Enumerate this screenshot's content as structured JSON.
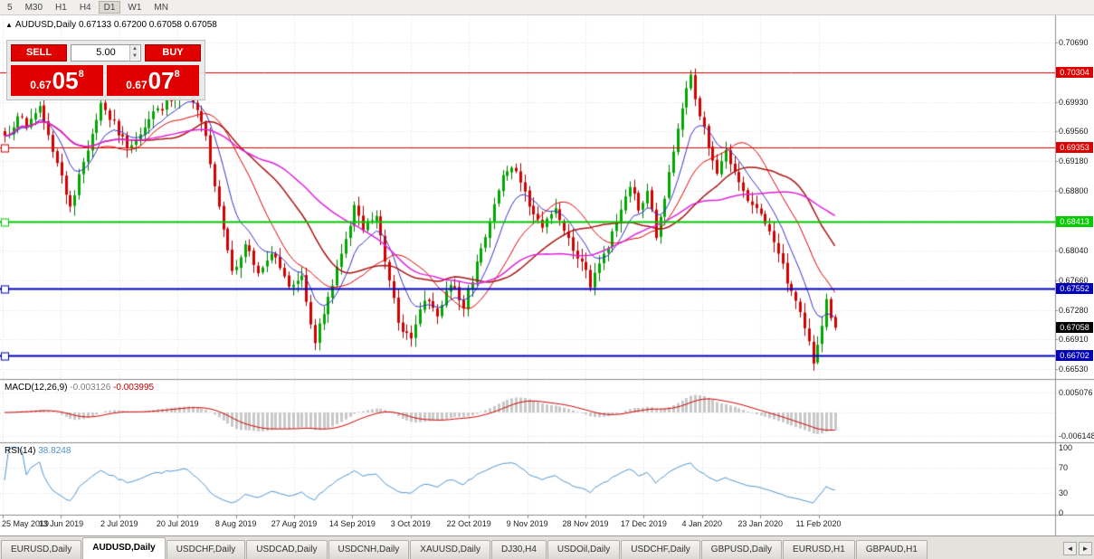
{
  "toolbar": {
    "timeframes": [
      "5",
      "M30",
      "H1",
      "H4",
      "D1",
      "W1",
      "MN"
    ],
    "active": "D1"
  },
  "header": {
    "collapse_icon": "▲",
    "symbol_period": "AUDUSD,Daily",
    "quotes": "0.67133 0.67200 0.67058 0.67058"
  },
  "trade_panel": {
    "sell_label": "SELL",
    "buy_label": "BUY",
    "volume": "5.00",
    "sell_price": {
      "small": "0.67",
      "big": "05",
      "sup": "8"
    },
    "buy_price": {
      "small": "0.67",
      "big": "07",
      "sup": "8"
    },
    "accent_color": "#e00000"
  },
  "macd_panel": {
    "label": "MACD(12,26,9)",
    "value_main": "-0.003126",
    "value_signal": "-0.003995"
  },
  "rsi_panel": {
    "label": "RSI(14)",
    "value": "38.8248"
  },
  "tabs": {
    "items": [
      {
        "label": "EURUSD,Daily",
        "active": false
      },
      {
        "label": "AUDUSD,Daily",
        "active": true
      },
      {
        "label": "USDCHF,Daily",
        "active": false
      },
      {
        "label": "USDCAD,Daily",
        "active": false
      },
      {
        "label": "USDCNH,Daily",
        "active": false
      },
      {
        "label": "XAUUSD,Daily",
        "active": false
      },
      {
        "label": "DJ30,H4",
        "active": false
      },
      {
        "label": "USDOil,Daily",
        "active": false
      },
      {
        "label": "USDCHF,Daily",
        "active": false
      },
      {
        "label": "GBPUSD,Daily",
        "active": false
      },
      {
        "label": "EURUSD,H1",
        "active": false
      },
      {
        "label": "GBPAUD,H1",
        "active": false
      }
    ],
    "scroll_left": "◄",
    "scroll_right": "►"
  },
  "chart_data": {
    "type": "candlestick",
    "symbol": "AUDUSD",
    "period": "Daily",
    "visible_ohlc": {
      "open": "0.67133",
      "high": "0.67200",
      "low": "0.67058",
      "close": "0.67058"
    },
    "x_dates": [
      "25 May 2019",
      "13 Jun 2019",
      "2 Jul 2019",
      "20 Jul 2019",
      "8 Aug 2019",
      "27 Aug 2019",
      "14 Sep 2019",
      "3 Oct 2019",
      "22 Oct 2019",
      "9 Nov 2019",
      "28 Nov 2019",
      "17 Dec 2019",
      "4 Jan 2020",
      "23 Jan 2020",
      "11 Feb 2020"
    ],
    "main_ylim": [
      0.6642,
      0.7102
    ],
    "price_ticks": [
      "0.70690",
      "0.69930",
      "0.69560",
      "0.69180",
      "0.68800",
      "0.68040",
      "0.67660",
      "0.67280",
      "0.66910",
      "0.66530"
    ],
    "price_tick_values": [
      0.7069,
      0.6993,
      0.6956,
      0.6918,
      0.688,
      0.6804,
      0.6766,
      0.6728,
      0.6691,
      0.6653
    ],
    "grid_levels": [
      0.7069,
      0.7031,
      0.6993,
      0.6956,
      0.6918,
      0.688,
      0.6842,
      0.6804,
      0.6766,
      0.6728,
      0.6691,
      0.6653
    ],
    "hlines": [
      {
        "price": 0.70304,
        "label": "0.70304",
        "color": "#dd0000",
        "width": 1
      },
      {
        "price": 0.69353,
        "label": "0.69353",
        "color": "#dd0000",
        "width": 1
      },
      {
        "price": 0.68413,
        "label": "0.68413",
        "color": "#00cc00",
        "width": 2
      },
      {
        "price": 0.67552,
        "label": "0.67552",
        "color": "#0000bb",
        "width": 2
      },
      {
        "price": 0.66702,
        "label": "0.66702",
        "color": "#0000bb",
        "width": 2
      }
    ],
    "current_price": {
      "value": 0.67058,
      "label": "0.67058",
      "color": "#000000"
    },
    "num_candles": 191,
    "candle_colors": {
      "up": "#00a800",
      "down": "#d40000",
      "up_wick": "#007800",
      "down_wick": "#a00000"
    },
    "price_anchors": [
      [
        0,
        0.695
      ],
      [
        3,
        0.6975
      ],
      [
        5,
        0.696
      ],
      [
        8,
        0.6988
      ],
      [
        15,
        0.686
      ],
      [
        22,
        0.6992
      ],
      [
        28,
        0.6935
      ],
      [
        35,
        0.6985
      ],
      [
        42,
        0.7005
      ],
      [
        46,
        0.695
      ],
      [
        49,
        0.686
      ],
      [
        52,
        0.6778
      ],
      [
        55,
        0.6812
      ],
      [
        58,
        0.6775
      ],
      [
        61,
        0.68
      ],
      [
        65,
        0.6758
      ],
      [
        68,
        0.6772
      ],
      [
        71,
        0.6686
      ],
      [
        74,
        0.6745
      ],
      [
        77,
        0.68
      ],
      [
        80,
        0.6862
      ],
      [
        82,
        0.683
      ],
      [
        85,
        0.6848
      ],
      [
        87,
        0.679
      ],
      [
        90,
        0.6712
      ],
      [
        93,
        0.6692
      ],
      [
        96,
        0.674
      ],
      [
        99,
        0.672
      ],
      [
        102,
        0.676
      ],
      [
        105,
        0.673
      ],
      [
        108,
        0.679
      ],
      [
        111,
        0.684
      ],
      [
        114,
        0.69
      ],
      [
        117,
        0.6905
      ],
      [
        120,
        0.686
      ],
      [
        123,
        0.6833
      ],
      [
        126,
        0.6858
      ],
      [
        129,
        0.682
      ],
      [
        132,
        0.679
      ],
      [
        134,
        0.6757
      ],
      [
        137,
        0.68
      ],
      [
        140,
        0.684
      ],
      [
        143,
        0.6885
      ],
      [
        145,
        0.6855
      ],
      [
        147,
        0.688
      ],
      [
        149,
        0.682
      ],
      [
        151,
        0.687
      ],
      [
        153,
        0.693
      ],
      [
        155,
        0.6985
      ],
      [
        157,
        0.7028
      ],
      [
        159,
        0.6975
      ],
      [
        161,
        0.6935
      ],
      [
        163,
        0.6902
      ],
      [
        165,
        0.6932
      ],
      [
        167,
        0.6905
      ],
      [
        169,
        0.688
      ],
      [
        171,
        0.6862
      ],
      [
        174,
        0.6838
      ],
      [
        177,
        0.68
      ],
      [
        179,
        0.6762
      ],
      [
        181,
        0.674
      ],
      [
        183,
        0.6705
      ],
      [
        185,
        0.666
      ],
      [
        187,
        0.6708
      ],
      [
        188,
        0.6742
      ],
      [
        189,
        0.6718
      ],
      [
        190,
        0.67058
      ]
    ],
    "high_overrides": {
      "42": 0.7008,
      "157": 0.7032
    },
    "low_overrides": {
      "71": 0.6677,
      "185": 0.6651
    },
    "moving_averages": [
      {
        "type": "ema",
        "period": 9,
        "color": "#3333cc",
        "width": 1
      },
      {
        "type": "sma",
        "period": 18,
        "color": "#e00000",
        "width": 1
      },
      {
        "type": "sma",
        "period": 30,
        "color": "#aa1111",
        "width": 1.5
      },
      {
        "type": "sma",
        "period": 45,
        "color": "#dd22dd",
        "width": 1.5
      }
    ],
    "macd": {
      "fast": 12,
      "slow": 26,
      "signal": 9,
      "hist_color": "#c8c8c8",
      "signal_color": "#d00000",
      "axis_top_label": "0.005076",
      "axis_bottom_label": "-0.006148",
      "axis_top_value": 0.005076,
      "axis_bottom_value": -0.006148
    },
    "rsi": {
      "period": 14,
      "color": "#4f94cd",
      "levels": [
        70,
        30
      ],
      "axis_labels": [
        "100",
        "70",
        "30",
        "0"
      ],
      "axis_values": [
        100,
        70,
        30,
        0
      ]
    }
  }
}
